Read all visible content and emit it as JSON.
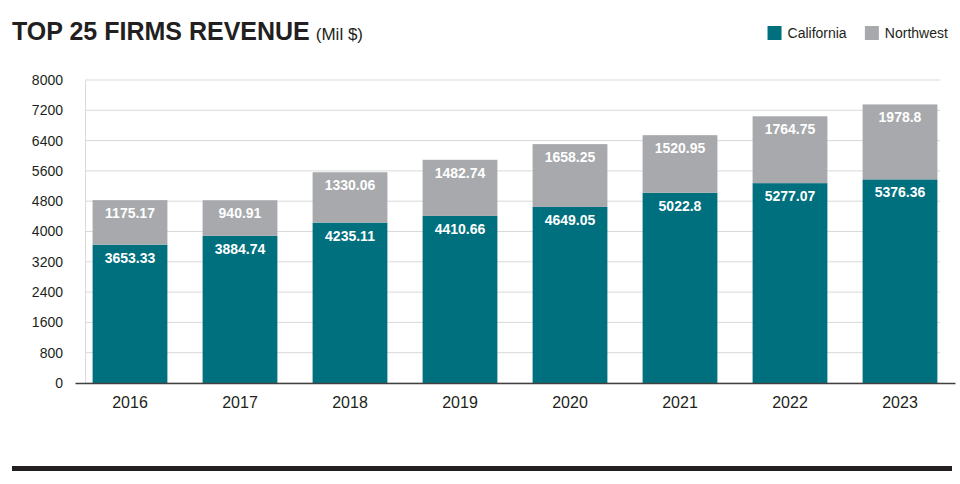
{
  "chart_data": {
    "type": "bar",
    "title": "TOP 25 FIRMS REVENUE",
    "subtitle": "(Mil $)",
    "categories": [
      "2016",
      "2017",
      "2018",
      "2019",
      "2020",
      "2021",
      "2022",
      "2023"
    ],
    "series": [
      {
        "name": "California",
        "color": "#00707e",
        "values": [
          3653.33,
          3884.74,
          4235.11,
          4410.66,
          4649.05,
          5022.8,
          5277.07,
          5376.36
        ]
      },
      {
        "name": "Northwest",
        "color": "#a7a9ac",
        "values": [
          1175.17,
          940.91,
          1330.06,
          1482.74,
          1658.25,
          1520.95,
          1764.75,
          1978.8
        ]
      }
    ],
    "ylim": [
      0,
      8000
    ],
    "yticks": [
      0,
      800,
      1600,
      2400,
      3200,
      4000,
      4800,
      5600,
      6400,
      7200,
      8000
    ],
    "stacked": true,
    "data_labels": true,
    "grid": true,
    "legend": "upper right"
  }
}
